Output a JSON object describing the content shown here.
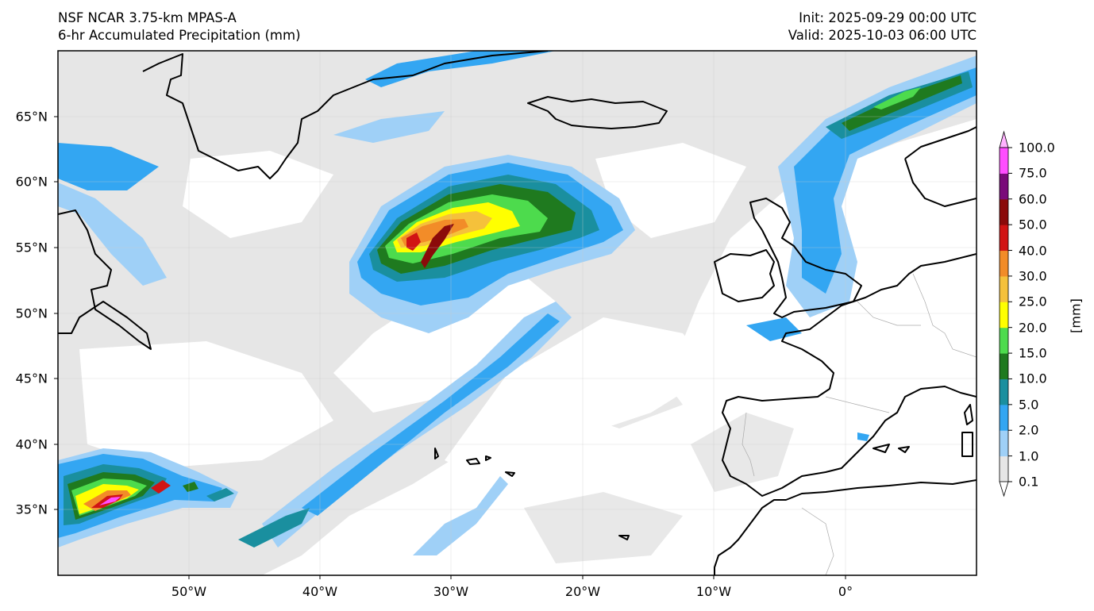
{
  "title": {
    "line1": "NSF NCAR 3.75-km MPAS-A",
    "line2": "6-hr Accumulated Precipitation (mm)",
    "init": "Init: 2025-09-29 00:00 UTC",
    "valid": "Valid: 2025-10-03 06:00 UTC"
  },
  "map": {
    "lon_range": [
      -60,
      10
    ],
    "lat_range": [
      30,
      70
    ],
    "lat_ticks": [
      {
        "value": 65,
        "label": "65°N"
      },
      {
        "value": 60,
        "label": "60°N"
      },
      {
        "value": 55,
        "label": "55°N"
      },
      {
        "value": 50,
        "label": "50°N"
      },
      {
        "value": 45,
        "label": "45°N"
      },
      {
        "value": 40,
        "label": "40°N"
      },
      {
        "value": 35,
        "label": "35°N"
      }
    ],
    "lon_ticks": [
      {
        "value": -50,
        "label": "50°W"
      },
      {
        "value": -40,
        "label": "40°W"
      },
      {
        "value": -30,
        "label": "30°W"
      },
      {
        "value": -20,
        "label": "20°W"
      },
      {
        "value": -10,
        "label": "10°W"
      },
      {
        "value": 0,
        "label": "0°"
      }
    ],
    "land_color": "#ffffff",
    "coast_color": "#000000",
    "grid": true
  },
  "colorbar": {
    "units": "[mm]",
    "levels": [
      "0.1",
      "1.0",
      "2.0",
      "5.0",
      "10.0",
      "15.0",
      "20.0",
      "25.0",
      "30.0",
      "40.0",
      "50.0",
      "60.0",
      "75.0",
      "100.0"
    ],
    "colors": [
      "#e6e6e6",
      "#9fd0f7",
      "#33a6f2",
      "#1a8f9f",
      "#1f7a1f",
      "#4ddb4d",
      "#ffff00",
      "#f5c13b",
      "#f28c28",
      "#d11414",
      "#8b0a0a",
      "#7a0a7a",
      "#ff4dff"
    ],
    "over_color": "#ffb3ff",
    "under_color": "#ffffff",
    "extend": "both"
  },
  "features": [
    {
      "name": "Extratropical cyclone precipitation",
      "center_lon": -30,
      "center_lat": 55.5,
      "max_mm": 50
    },
    {
      "name": "Subtropical band",
      "center_lon": -55,
      "center_lat": 35.5,
      "max_mm": 100
    },
    {
      "name": "Frontal band",
      "from_lon": -40,
      "from_lat": 38,
      "to_lon": -22,
      "to_lat": 49
    }
  ]
}
